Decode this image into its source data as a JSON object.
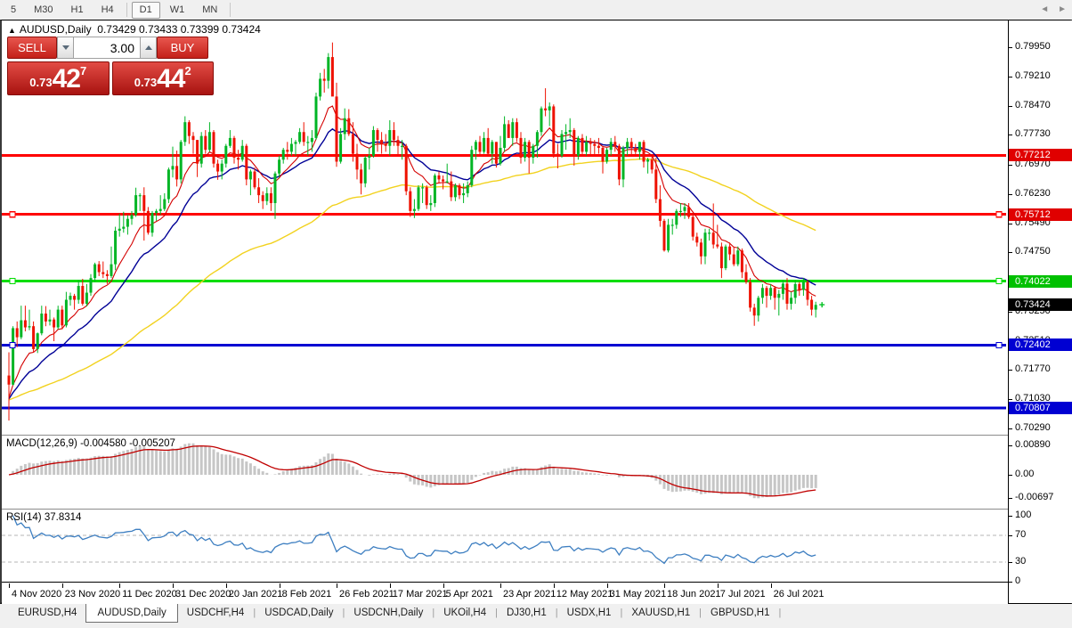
{
  "toolbar": {
    "periods": [
      "5",
      "M30",
      "H1",
      "H4",
      "D1",
      "W1",
      "MN"
    ],
    "active_period": "D1"
  },
  "header": {
    "symbol": "AUDUSD,Daily",
    "ohlc": "0.73429 0.73433 0.73399 0.73424"
  },
  "trade": {
    "sell_label": "SELL",
    "buy_label": "BUY",
    "volume": "3.00",
    "sell_price": {
      "small": "0.73",
      "big": "42",
      "sup": "7"
    },
    "buy_price": {
      "small": "0.73",
      "big": "44",
      "sup": "2"
    }
  },
  "price_axis": {
    "ticks": [
      "0.79950",
      "0.79210",
      "0.78470",
      "0.77730",
      "0.76970",
      "0.76230",
      "0.75490",
      "0.74750",
      "0.74010",
      "0.73250",
      "0.72510",
      "0.71770",
      "0.71030",
      "0.70290"
    ],
    "tags": [
      {
        "text": "0.77212",
        "bg": "#e00000"
      },
      {
        "text": "0.75712",
        "bg": "#e00000"
      },
      {
        "text": "0.74022",
        "bg": "#00c000"
      },
      {
        "text": "0.73424",
        "bg": "#000000"
      },
      {
        "text": "0.72402",
        "bg": "#0000d2"
      },
      {
        "text": "0.70807",
        "bg": "#0000d2"
      }
    ]
  },
  "macd": {
    "label": "MACD(12,26,9)",
    "value": "-0.004580",
    "signal_value": "-0.005207",
    "axis": [
      "0.00890",
      "0.00",
      "-0.00697"
    ]
  },
  "rsi": {
    "label": "RSI(14)",
    "value": "37.8314",
    "axis": [
      "100",
      "70",
      "30",
      "0"
    ],
    "levels": [
      70,
      30
    ]
  },
  "date_axis": [
    {
      "label": "4 Nov 2020",
      "i": 0
    },
    {
      "label": "23 Nov 2020",
      "i": 13
    },
    {
      "label": "11 Dec 2020",
      "i": 27
    },
    {
      "label": "31 Dec 2020",
      "i": 40
    },
    {
      "label": "20 Jan 2021",
      "i": 53
    },
    {
      "label": "8 Feb 2021",
      "i": 66
    },
    {
      "label": "26 Feb 2021",
      "i": 80
    },
    {
      "label": "17 Mar 2021",
      "i": 93
    },
    {
      "label": "5 Apr 2021",
      "i": 106
    },
    {
      "label": "23 Apr 2021",
      "i": 120
    },
    {
      "label": "12 May 2021",
      "i": 133
    },
    {
      "label": "31 May 2021",
      "i": 146
    },
    {
      "label": "18 Jun 2021",
      "i": 160
    },
    {
      "label": "7 Jul 2021",
      "i": 173
    },
    {
      "label": "26 Jul 2021",
      "i": 186
    }
  ],
  "tabs": {
    "items": [
      "EURUSD,H4",
      "AUDUSD,Daily",
      "USDCHF,H4",
      "USDCAD,Daily",
      "USDCNH,Daily",
      "UKOil,H4",
      "DJ30,H1",
      "USDX,H1",
      "XAUUSD,H1",
      "GBPUSD,H1"
    ],
    "active_index": 1,
    "nav_left": "◄",
    "nav_right": "►"
  },
  "colors": {
    "candle_up": "#00b525",
    "candle_down": "#ee1100",
    "hline_red": "#ff0000",
    "hline_green": "#00dd00",
    "hline_blue": "#0000d2",
    "ma_fast": "#d40000",
    "ma_mid": "#000096",
    "ma_slow": "#f2d21f",
    "macd_bar": "#c6c6c6",
    "macd_signal": "#c00000",
    "rsi_line": "#3e7fc1",
    "marker_green": "#00c020"
  },
  "chart_data": {
    "type": "candlestick",
    "symbol": "AUDUSD",
    "timeframe": "Daily",
    "hlines": [
      {
        "price": 0.77212,
        "color": "#ff0000",
        "handles": false
      },
      {
        "price": 0.75712,
        "color": "#ff0000",
        "handles": true
      },
      {
        "price": 0.74022,
        "color": "#00dd00",
        "handles": true
      },
      {
        "price": 0.72402,
        "color": "#0000d2",
        "handles": true
      },
      {
        "price": 0.70807,
        "color": "#0000d2",
        "handles": false
      }
    ],
    "current_price": 0.73424,
    "ylim": [
      0.7029,
      0.7995
    ],
    "open_first": 0.7163,
    "candles_hlc": [
      [
        0.7222,
        0.7049,
        0.714
      ],
      [
        0.7288,
        0.7138,
        0.7283
      ],
      [
        0.73,
        0.7235,
        0.726
      ],
      [
        0.734,
        0.7255,
        0.7303
      ],
      [
        0.734,
        0.7275,
        0.7285
      ],
      [
        0.733,
        0.7278,
        0.7288
      ],
      [
        0.73,
        0.7222,
        0.723
      ],
      [
        0.7272,
        0.722,
        0.727
      ],
      [
        0.734,
        0.7265,
        0.732
      ],
      [
        0.7339,
        0.7288,
        0.73
      ],
      [
        0.733,
        0.729,
        0.7305
      ],
      [
        0.731,
        0.725,
        0.7285
      ],
      [
        0.734,
        0.728,
        0.733
      ],
      [
        0.734,
        0.728,
        0.729
      ],
      [
        0.7375,
        0.7285,
        0.7355
      ],
      [
        0.7373,
        0.734,
        0.7365
      ],
      [
        0.737,
        0.733,
        0.7355
      ],
      [
        0.7405,
        0.7345,
        0.739
      ],
      [
        0.7408,
        0.734,
        0.7345
      ],
      [
        0.7395,
        0.7338,
        0.7373
      ],
      [
        0.742,
        0.7365,
        0.741
      ],
      [
        0.7449,
        0.74,
        0.7445
      ],
      [
        0.7453,
        0.7415,
        0.7425
      ],
      [
        0.7452,
        0.741,
        0.742
      ],
      [
        0.743,
        0.7395,
        0.7415
      ],
      [
        0.749,
        0.741,
        0.7445
      ],
      [
        0.754,
        0.743,
        0.753
      ],
      [
        0.7573,
        0.7515,
        0.7535
      ],
      [
        0.7578,
        0.7525,
        0.754
      ],
      [
        0.757,
        0.752,
        0.756
      ],
      [
        0.758,
        0.7545,
        0.757
      ],
      [
        0.7639,
        0.7565,
        0.762
      ],
      [
        0.7625,
        0.758,
        0.762
      ],
      [
        0.764,
        0.7505,
        0.758
      ],
      [
        0.759,
        0.752,
        0.7525
      ],
      [
        0.758,
        0.7515,
        0.7575
      ],
      [
        0.7585,
        0.7555,
        0.758
      ],
      [
        0.762,
        0.757,
        0.7585
      ],
      [
        0.7625,
        0.758,
        0.761
      ],
      [
        0.769,
        0.76,
        0.7685
      ],
      [
        0.7743,
        0.7665,
        0.7694
      ],
      [
        0.7733,
        0.7642,
        0.766
      ],
      [
        0.776,
        0.765,
        0.7755
      ],
      [
        0.782,
        0.7745,
        0.7805
      ],
      [
        0.781,
        0.775,
        0.777
      ],
      [
        0.778,
        0.7725,
        0.776
      ],
      [
        0.776,
        0.7666,
        0.77
      ],
      [
        0.778,
        0.769,
        0.777
      ],
      [
        0.7785,
        0.7725,
        0.7735
      ],
      [
        0.7805,
        0.773,
        0.778
      ],
      [
        0.7785,
        0.769,
        0.77
      ],
      [
        0.771,
        0.7659,
        0.768
      ],
      [
        0.771,
        0.766,
        0.77
      ],
      [
        0.775,
        0.769,
        0.7745
      ],
      [
        0.7785,
        0.774,
        0.7765
      ],
      [
        0.777,
        0.77,
        0.7715
      ],
      [
        0.7735,
        0.7685,
        0.771
      ],
      [
        0.776,
        0.7705,
        0.7745
      ],
      [
        0.775,
        0.7645,
        0.766
      ],
      [
        0.7685,
        0.762,
        0.768
      ],
      [
        0.769,
        0.7635,
        0.764
      ],
      [
        0.7663,
        0.76,
        0.762
      ],
      [
        0.763,
        0.7585,
        0.7605
      ],
      [
        0.764,
        0.7595,
        0.7625
      ],
      [
        0.764,
        0.758,
        0.76
      ],
      [
        0.768,
        0.756,
        0.7675
      ],
      [
        0.772,
        0.7665,
        0.771
      ],
      [
        0.774,
        0.77,
        0.7735
      ],
      [
        0.7755,
        0.771,
        0.773
      ],
      [
        0.7765,
        0.772,
        0.775
      ],
      [
        0.776,
        0.772,
        0.7755
      ],
      [
        0.779,
        0.775,
        0.778
      ],
      [
        0.7805,
        0.7745,
        0.7755
      ],
      [
        0.777,
        0.772,
        0.7755
      ],
      [
        0.7785,
        0.773,
        0.7765
      ],
      [
        0.788,
        0.776,
        0.787
      ],
      [
        0.793,
        0.786,
        0.7915
      ],
      [
        0.794,
        0.788,
        0.791
      ],
      [
        0.798,
        0.789,
        0.797
      ],
      [
        0.8007,
        0.7945,
        0.787
      ],
      [
        0.7905,
        0.7692,
        0.7705
      ],
      [
        0.779,
        0.77,
        0.7775
      ],
      [
        0.784,
        0.776,
        0.7815
      ],
      [
        0.7838,
        0.777,
        0.7775
      ],
      [
        0.7805,
        0.7705,
        0.7725
      ],
      [
        0.775,
        0.766,
        0.7685
      ],
      [
        0.77,
        0.7622,
        0.765
      ],
      [
        0.772,
        0.764,
        0.7715
      ],
      [
        0.774,
        0.7685,
        0.772
      ],
      [
        0.7795,
        0.7715,
        0.7785
      ],
      [
        0.779,
        0.773,
        0.776
      ],
      [
        0.778,
        0.7725,
        0.775
      ],
      [
        0.7775,
        0.773,
        0.7745
      ],
      [
        0.781,
        0.772,
        0.7785
      ],
      [
        0.7805,
        0.7745,
        0.776
      ],
      [
        0.777,
        0.772,
        0.7745
      ],
      [
        0.776,
        0.771,
        0.7745
      ],
      [
        0.775,
        0.762,
        0.763
      ],
      [
        0.764,
        0.7565,
        0.758
      ],
      [
        0.761,
        0.7562,
        0.7585
      ],
      [
        0.7645,
        0.758,
        0.764
      ],
      [
        0.765,
        0.76,
        0.764
      ],
      [
        0.7645,
        0.7585,
        0.7595
      ],
      [
        0.762,
        0.758,
        0.76
      ],
      [
        0.7675,
        0.759,
        0.767
      ],
      [
        0.768,
        0.765,
        0.766
      ],
      [
        0.767,
        0.7635,
        0.7655
      ],
      [
        0.77,
        0.765,
        0.7655
      ],
      [
        0.768,
        0.7605,
        0.7615
      ],
      [
        0.765,
        0.7605,
        0.7645
      ],
      [
        0.765,
        0.761,
        0.762
      ],
      [
        0.765,
        0.76,
        0.7625
      ],
      [
        0.7655,
        0.7615,
        0.7645
      ],
      [
        0.7745,
        0.764,
        0.7735
      ],
      [
        0.776,
        0.771,
        0.7755
      ],
      [
        0.777,
        0.772,
        0.773
      ],
      [
        0.778,
        0.7725,
        0.7765
      ],
      [
        0.779,
        0.772,
        0.7725
      ],
      [
        0.776,
        0.77,
        0.7755
      ],
      [
        0.7755,
        0.769,
        0.77
      ],
      [
        0.777,
        0.7695,
        0.774
      ],
      [
        0.782,
        0.773,
        0.78
      ],
      [
        0.781,
        0.7765,
        0.7765
      ],
      [
        0.7815,
        0.7745,
        0.7805
      ],
      [
        0.7815,
        0.7755,
        0.7765
      ],
      [
        0.778,
        0.77,
        0.7715
      ],
      [
        0.7765,
        0.7705,
        0.7755
      ],
      [
        0.776,
        0.7675,
        0.7715
      ],
      [
        0.775,
        0.77,
        0.7745
      ],
      [
        0.7785,
        0.7715,
        0.778
      ],
      [
        0.7845,
        0.777,
        0.784
      ],
      [
        0.7891,
        0.782,
        0.7835
      ],
      [
        0.7855,
        0.7795,
        0.7845
      ],
      [
        0.785,
        0.7715,
        0.7725
      ],
      [
        0.775,
        0.7688,
        0.772
      ],
      [
        0.7785,
        0.7715,
        0.7775
      ],
      [
        0.78,
        0.7735,
        0.778
      ],
      [
        0.7815,
        0.7765,
        0.7785
      ],
      [
        0.779,
        0.7695,
        0.772
      ],
      [
        0.777,
        0.771,
        0.7765
      ],
      [
        0.7775,
        0.772,
        0.773
      ],
      [
        0.777,
        0.772,
        0.7755
      ],
      [
        0.7765,
        0.772,
        0.775
      ],
      [
        0.776,
        0.772,
        0.7745
      ],
      [
        0.7765,
        0.7725,
        0.774
      ],
      [
        0.7745,
        0.7675,
        0.7705
      ],
      [
        0.774,
        0.77,
        0.7735
      ],
      [
        0.7765,
        0.772,
        0.7755
      ],
      [
        0.777,
        0.773,
        0.7745
      ],
      [
        0.775,
        0.7645,
        0.766
      ],
      [
        0.7745,
        0.764,
        0.774
      ],
      [
        0.7765,
        0.772,
        0.7755
      ],
      [
        0.7765,
        0.772,
        0.774
      ],
      [
        0.775,
        0.772,
        0.773
      ],
      [
        0.7755,
        0.771,
        0.7755
      ],
      [
        0.776,
        0.769,
        0.7705
      ],
      [
        0.7715,
        0.7675,
        0.771
      ],
      [
        0.772,
        0.7675,
        0.7685
      ],
      [
        0.7715,
        0.76,
        0.761
      ],
      [
        0.7645,
        0.754,
        0.7555
      ],
      [
        0.756,
        0.7477,
        0.748
      ],
      [
        0.756,
        0.7475,
        0.7545
      ],
      [
        0.756,
        0.752,
        0.7545
      ],
      [
        0.7585,
        0.7535,
        0.758
      ],
      [
        0.76,
        0.7565,
        0.758
      ],
      [
        0.76,
        0.756,
        0.759
      ],
      [
        0.76,
        0.756,
        0.7565
      ],
      [
        0.7575,
        0.7505,
        0.7515
      ],
      [
        0.7525,
        0.749,
        0.75
      ],
      [
        0.751,
        0.7445,
        0.7465
      ],
      [
        0.7535,
        0.7445,
        0.7525
      ],
      [
        0.7535,
        0.7505,
        0.7525
      ],
      [
        0.7599,
        0.7485,
        0.7495
      ],
      [
        0.7545,
        0.7485,
        0.749
      ],
      [
        0.75,
        0.741,
        0.7435
      ],
      [
        0.7495,
        0.743,
        0.749
      ],
      [
        0.75,
        0.7455,
        0.747
      ],
      [
        0.749,
        0.744,
        0.7445
      ],
      [
        0.749,
        0.744,
        0.748
      ],
      [
        0.7485,
        0.741,
        0.7425
      ],
      [
        0.7445,
        0.7395,
        0.74
      ],
      [
        0.741,
        0.7325,
        0.7335
      ],
      [
        0.7345,
        0.7289,
        0.7315
      ],
      [
        0.7365,
        0.73,
        0.736
      ],
      [
        0.7395,
        0.7345,
        0.7385
      ],
      [
        0.739,
        0.7335,
        0.7365
      ],
      [
        0.7395,
        0.7355,
        0.7385
      ],
      [
        0.739,
        0.733,
        0.736
      ],
      [
        0.738,
        0.7315,
        0.737
      ],
      [
        0.7405,
        0.7355,
        0.7396
      ],
      [
        0.741,
        0.733,
        0.7345
      ],
      [
        0.7375,
        0.733,
        0.736
      ],
      [
        0.7405,
        0.7345,
        0.7395
      ],
      [
        0.74,
        0.7365,
        0.738
      ],
      [
        0.741,
        0.7365,
        0.74
      ],
      [
        0.7405,
        0.734,
        0.7355
      ],
      [
        0.7365,
        0.7315,
        0.733
      ],
      [
        0.735,
        0.731,
        0.7342
      ]
    ]
  }
}
